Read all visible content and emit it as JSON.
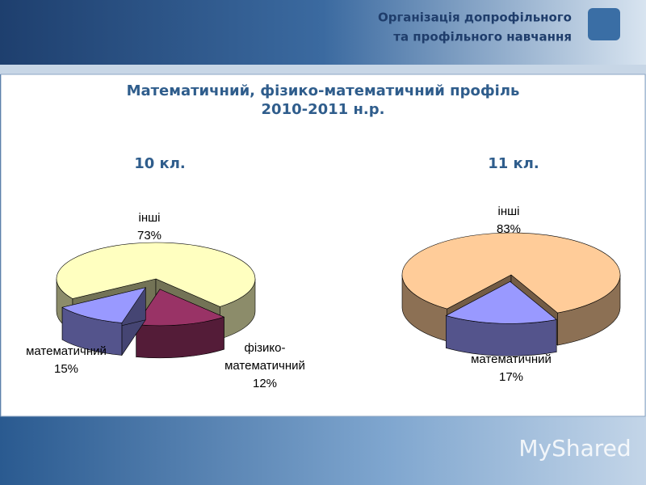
{
  "header": {
    "title": [
      "Організація допрофільного",
      "та профільного навчання"
    ]
  },
  "slide_title": [
    "Математичний, фізико-математичний профіль",
    "2010-2011 н.р."
  ],
  "watermark": "MyShared",
  "chart_data": [
    {
      "type": "pie",
      "title": "10 кл.",
      "categories": [
        "інші",
        "математичний",
        "фізико- математичний"
      ],
      "values": [
        73,
        15,
        12
      ],
      "value_labels": [
        "73%",
        "15%",
        "12%"
      ],
      "colors": [
        "#ffffc0",
        "#993366",
        "#9999ff"
      ]
    },
    {
      "type": "pie",
      "title": "11 кл.",
      "categories": [
        "інші",
        "математичний"
      ],
      "values": [
        83,
        17
      ],
      "value_labels": [
        "83%",
        "17%"
      ],
      "colors": [
        "#ffcc99",
        "#9999ff"
      ]
    }
  ]
}
